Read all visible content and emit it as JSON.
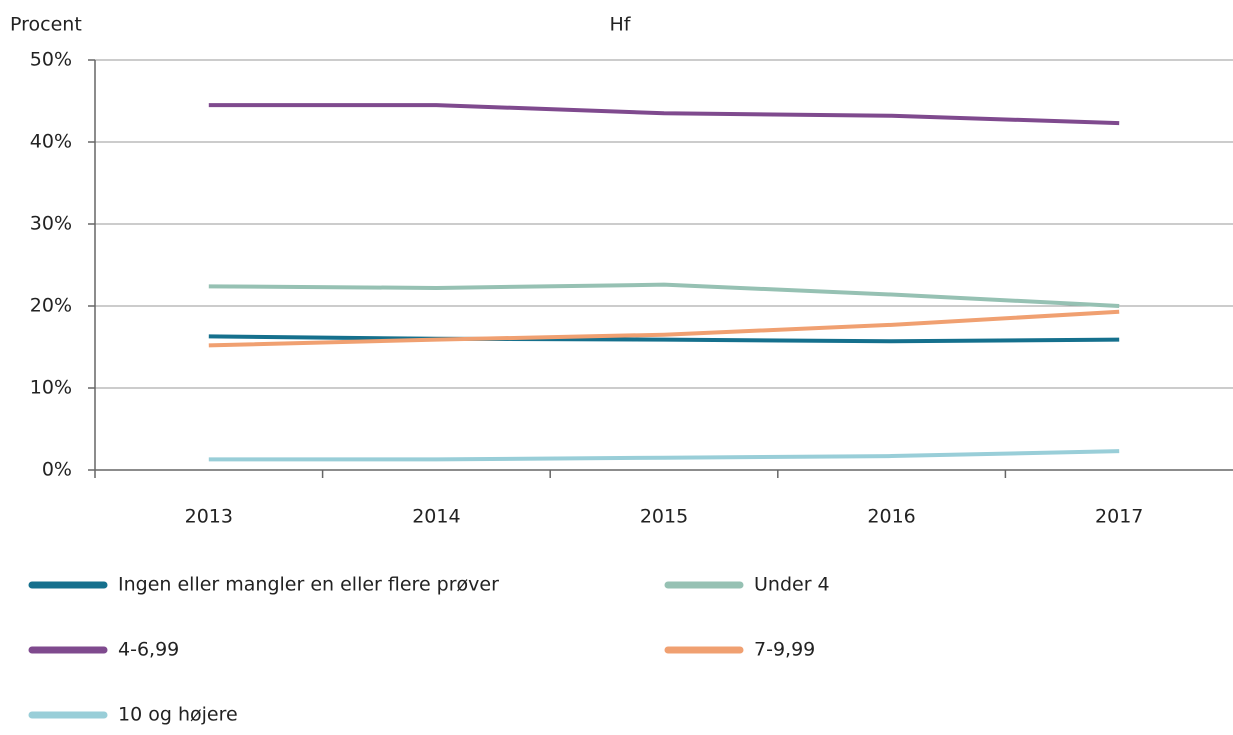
{
  "chart_data": {
    "type": "line",
    "title": "Hf",
    "y_label": "Procent",
    "categories": [
      "2013",
      "2014",
      "2015",
      "2016",
      "2017"
    ],
    "series": [
      {
        "name": "Ingen eller mangler en eller flere prøver",
        "color": "#15708d",
        "values": [
          16.3,
          16.0,
          15.9,
          15.7,
          15.9
        ]
      },
      {
        "name": "Under 4",
        "color": "#96c1b3",
        "values": [
          22.4,
          22.2,
          22.6,
          21.4,
          20.0
        ]
      },
      {
        "name": "4-6,99",
        "color": "#7f4a8e",
        "values": [
          44.5,
          44.5,
          43.5,
          43.2,
          42.3
        ]
      },
      {
        "name": "7-9,99",
        "color": "#f0a071",
        "values": [
          15.2,
          15.9,
          16.5,
          17.7,
          19.3
        ]
      },
      {
        "name": "10 og højere",
        "color": "#99ced8",
        "values": [
          1.3,
          1.3,
          1.5,
          1.7,
          2.3
        ]
      }
    ],
    "ylim": [
      0,
      50
    ],
    "yticks": [
      {
        "value": 0,
        "label": "0%"
      },
      {
        "value": 10,
        "label": "10%"
      },
      {
        "value": 20,
        "label": "20%"
      },
      {
        "value": 30,
        "label": "30%"
      },
      {
        "value": 40,
        "label": "40%"
      },
      {
        "value": 50,
        "label": "50%"
      }
    ],
    "grid": true
  }
}
